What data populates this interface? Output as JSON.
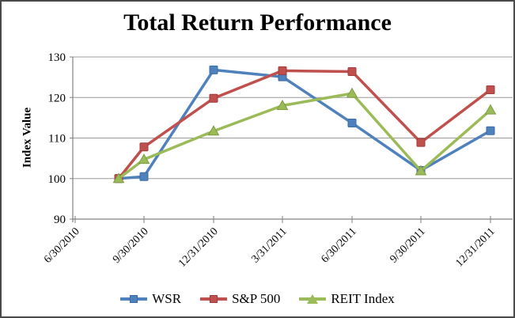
{
  "window": {
    "background": "#ffffff",
    "border_color": "#4a4a4a"
  },
  "chart_data": {
    "type": "line",
    "title": "Total Return Performance",
    "ylabel": "Index Value",
    "xlabel": "",
    "categories": [
      "6/30/2010",
      "9/30/2010",
      "12/31/2010",
      "3/31/2011",
      "6/30/2011",
      "9/30/2011",
      "12/31/2011"
    ],
    "series": [
      {
        "name": "WSR",
        "marker": "square",
        "color": "#4F81BD",
        "edge": "#3A6CA5",
        "values": [
          100.0,
          100.5,
          126.8,
          125.1,
          113.7,
          102.0,
          111.8
        ]
      },
      {
        "name": "S&P 500",
        "marker": "square",
        "color": "#C0504D",
        "edge": "#9E3D3B",
        "values": [
          100.0,
          107.8,
          119.8,
          126.6,
          126.4,
          108.9,
          121.9
        ]
      },
      {
        "name": "REIT Index",
        "marker": "triangle",
        "color": "#9BBB59",
        "edge": "#7D9C44",
        "values": [
          100.0,
          104.7,
          111.7,
          118.0,
          121.0,
          101.9,
          116.9
        ]
      }
    ],
    "ylim": [
      90,
      130
    ],
    "y_ticks": [
      130,
      120,
      110,
      100,
      90
    ],
    "grid": true,
    "legend_position": "bottom",
    "axis_color": "#808080",
    "grid_color": "#9a9a9a",
    "text_color": "#000000"
  }
}
